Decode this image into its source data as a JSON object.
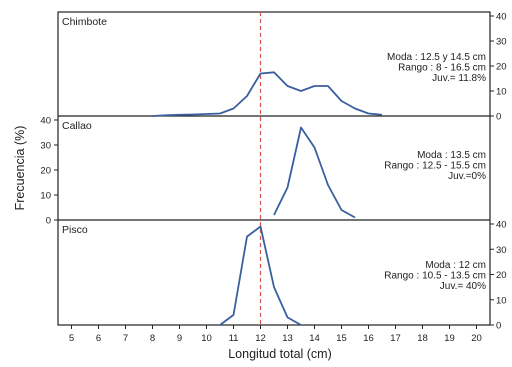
{
  "chart_data": [
    {
      "type": "line",
      "panel": "Chimbote",
      "xlim": [
        4.5,
        20.5
      ],
      "ylim": [
        0,
        40
      ],
      "yticks": [
        0,
        10,
        20,
        30,
        40
      ],
      "yaxis_side": "right",
      "x": [
        8,
        8.5,
        9,
        9.5,
        10,
        10.5,
        11,
        11.5,
        12,
        12.5,
        13,
        13.5,
        14,
        14.5,
        15,
        15.5,
        16,
        16.5
      ],
      "values": [
        0,
        0.3,
        0.5,
        0.6,
        0.8,
        1,
        3,
        8,
        17,
        17.5,
        12,
        10,
        12,
        12,
        6,
        3,
        1,
        0.5
      ],
      "annotations": [
        "Moda : 12.5 y 14.5 cm",
        "Rango : 8 - 16.5 cm",
        "Juv.= 11.8%"
      ]
    },
    {
      "type": "line",
      "panel": "Callao",
      "xlim": [
        4.5,
        20.5
      ],
      "ylim": [
        0,
        40
      ],
      "yticks": [
        0,
        10,
        20,
        30,
        40
      ],
      "yaxis_side": "left",
      "x": [
        12.5,
        13,
        13.5,
        14,
        14.5,
        15,
        15.5
      ],
      "values": [
        2,
        13,
        37,
        29,
        14,
        4,
        1
      ],
      "annotations": [
        "Moda : 13.5 cm",
        "Rango : 12.5 - 15.5 cm",
        "Juv.=0%"
      ]
    },
    {
      "type": "line",
      "panel": "Pisco",
      "xlim": [
        4.5,
        20.5
      ],
      "ylim": [
        0,
        40
      ],
      "yticks": [
        0,
        10,
        20,
        30,
        40
      ],
      "yaxis_side": "right",
      "x": [
        10.5,
        11,
        11.5,
        12,
        12.5,
        13,
        13.5
      ],
      "values": [
        0,
        4,
        35,
        39,
        15,
        3,
        0
      ],
      "annotations": [
        "Moda : 12 cm",
        "Rango : 10.5 - 13.5 cm",
        "Juv.= 40%"
      ]
    }
  ],
  "xlabel": "Longitud total (cm)",
  "ylabel": "Frecuencia (%)",
  "xticks": [
    5,
    6,
    7,
    8,
    9,
    10,
    11,
    12,
    13,
    14,
    15,
    16,
    17,
    18,
    19,
    20
  ],
  "reference_line_x": 12,
  "colors": {
    "line": "#3a5f9e",
    "reference": "#d9534f",
    "axis": "#222222"
  }
}
